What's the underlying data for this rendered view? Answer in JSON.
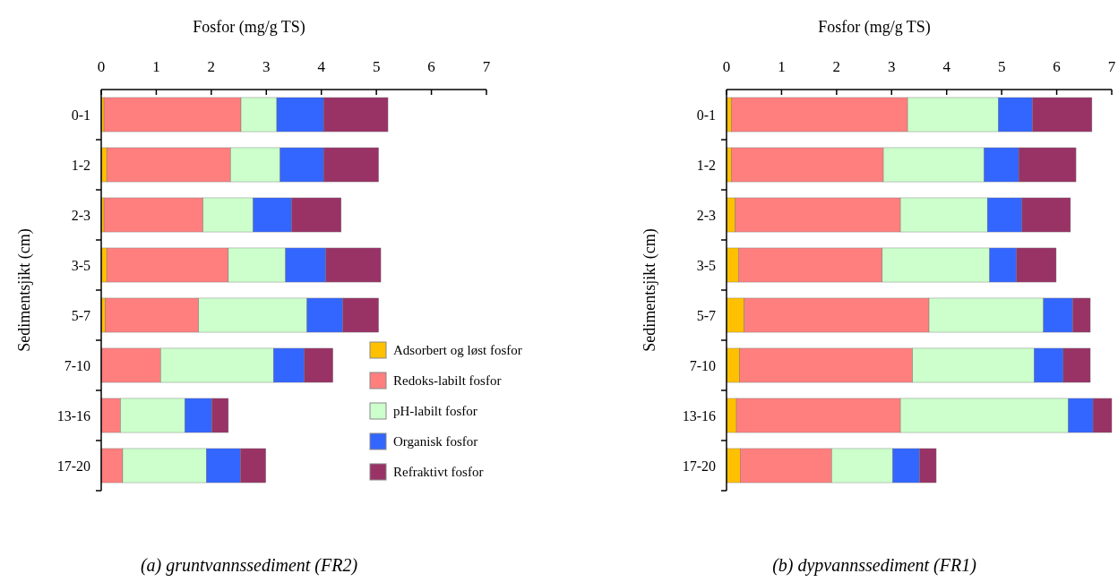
{
  "chart_data": [
    {
      "type": "bar",
      "orientation": "horizontal",
      "stacked": true,
      "title": "Fosfor (mg/g TS)",
      "ylabel": "Sedimentsjikt (cm)",
      "annotations": [
        "(a) gruntvannssediment (FR2)"
      ],
      "categories": [
        "0-1",
        "1-2",
        "2-3",
        "3-5",
        "5-7",
        "7-10",
        "13-16",
        "17-20"
      ],
      "xlim": [
        0,
        7
      ],
      "xticks": [
        0,
        1,
        2,
        3,
        4,
        5,
        6,
        7
      ],
      "legend": "bottom right",
      "series": [
        {
          "name": "Adsorbert og løst fosfor",
          "color": "#ffc000",
          "values": [
            0.05,
            0.1,
            0.05,
            0.1,
            0.07,
            0,
            0,
            0
          ]
        },
        {
          "name": "Redoks-labilt fosfor",
          "color": "#ff7f7f",
          "values": [
            2.49,
            2.25,
            1.8,
            2.21,
            1.7,
            1.08,
            0.35,
            0.39
          ]
        },
        {
          "name": "pH-labilt fosfor",
          "color": "#ccffcc",
          "values": [
            0.65,
            0.9,
            0.91,
            1.04,
            1.97,
            2.05,
            1.17,
            1.52
          ]
        },
        {
          "name": "Organisk fosfor",
          "color": "#3366ff",
          "values": [
            0.85,
            0.79,
            0.7,
            0.73,
            0.65,
            0.56,
            0.49,
            0.62
          ]
        },
        {
          "name": "Refraktivt fosfor",
          "color": "#993366",
          "values": [
            1.17,
            1.0,
            0.9,
            1.0,
            0.65,
            0.52,
            0.3,
            0.46
          ]
        }
      ]
    },
    {
      "type": "bar",
      "orientation": "horizontal",
      "stacked": true,
      "title": "Fosfor (mg/g TS)",
      "ylabel": "Sedimentsjikt (cm)",
      "annotations": [
        "(b) dypvannssediment (FR1)"
      ],
      "categories": [
        "0-1",
        "1-2",
        "2-3",
        "3-5",
        "5-7",
        "7-10",
        "13-16",
        "17-20"
      ],
      "xlim": [
        0,
        7
      ],
      "xticks": [
        0,
        1,
        2,
        3,
        4,
        5,
        6,
        7
      ],
      "series": [
        {
          "color": "#ffc000",
          "values": [
            0.09,
            0.09,
            0.16,
            0.22,
            0.32,
            0.24,
            0.18,
            0.25
          ]
        },
        {
          "color": "#ff7f7f",
          "values": [
            3.2,
            2.76,
            3.0,
            2.61,
            3.36,
            3.14,
            2.98,
            1.66
          ]
        },
        {
          "color": "#ccffcc",
          "values": [
            1.65,
            1.83,
            1.58,
            1.95,
            2.08,
            2.21,
            3.05,
            1.11
          ]
        },
        {
          "color": "#3366ff",
          "values": [
            0.62,
            0.63,
            0.63,
            0.49,
            0.53,
            0.53,
            0.45,
            0.49
          ]
        },
        {
          "color": "#993366",
          "values": [
            1.08,
            1.04,
            0.88,
            0.72,
            0.32,
            0.49,
            0.34,
            0.3
          ]
        }
      ]
    }
  ]
}
